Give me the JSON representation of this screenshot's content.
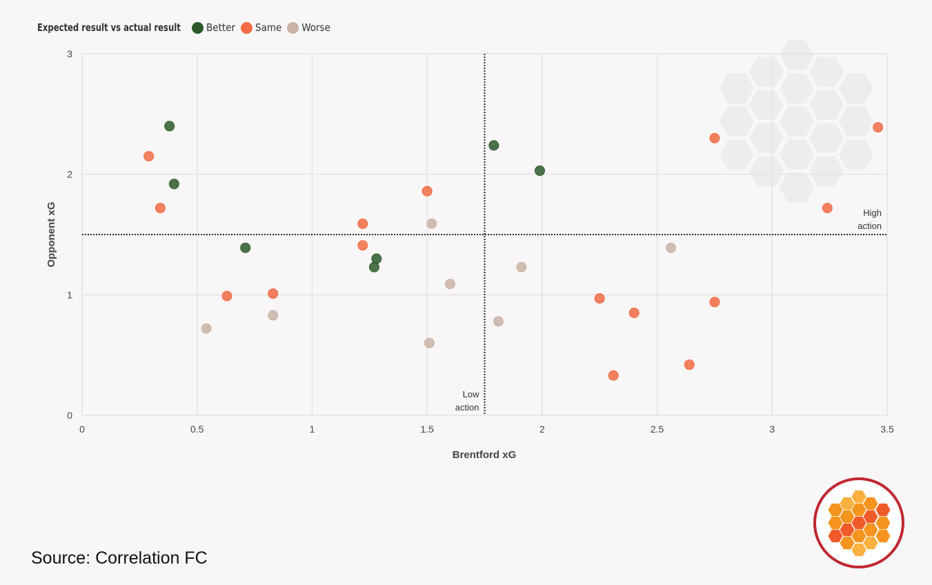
{
  "legend": {
    "title": "Expected result vs actual result",
    "items": [
      {
        "label": "Better",
        "color": "#2d5a2b"
      },
      {
        "label": "Same",
        "color": "#f26b43"
      },
      {
        "label": "Worse",
        "color": "#c9b3a6"
      }
    ]
  },
  "source": "Source: Correlation FC",
  "chart_data": {
    "type": "scatter",
    "xlabel": "Brentford xG",
    "ylabel": "Opponent xG",
    "xlim": [
      0,
      3.5
    ],
    "ylim": [
      0,
      3
    ],
    "xticks": [
      "0",
      "0.5",
      "1",
      "1.5",
      "2",
      "2.5",
      "3",
      "3.5"
    ],
    "yticks": [
      "0",
      "1",
      "2",
      "3"
    ],
    "grid": true,
    "legend_position": "top-left",
    "reference_lines": {
      "x": 1.75,
      "y": 1.5
    },
    "annotations": [
      {
        "text": [
          "Low",
          "action"
        ],
        "x": 1.75,
        "y": 0
      },
      {
        "text": [
          "High",
          "action"
        ],
        "x": 3.5,
        "y": 1.5
      }
    ],
    "series": [
      {
        "name": "Better",
        "color": "#2d5a2b",
        "points": [
          [
            0.38,
            2.4
          ],
          [
            0.4,
            1.92
          ],
          [
            0.71,
            1.39
          ],
          [
            1.28,
            1.3
          ],
          [
            1.27,
            1.23
          ],
          [
            1.79,
            2.24
          ],
          [
            1.99,
            2.03
          ]
        ]
      },
      {
        "name": "Same",
        "color": "#f26b43",
        "points": [
          [
            0.29,
            2.15
          ],
          [
            0.34,
            1.72
          ],
          [
            0.63,
            0.99
          ],
          [
            0.83,
            1.01
          ],
          [
            1.22,
            1.59
          ],
          [
            1.22,
            1.41
          ],
          [
            1.5,
            1.86
          ],
          [
            2.25,
            0.97
          ],
          [
            2.31,
            0.33
          ],
          [
            2.4,
            0.85
          ],
          [
            2.64,
            0.42
          ],
          [
            2.75,
            2.3
          ],
          [
            2.75,
            0.94
          ],
          [
            3.24,
            1.72
          ],
          [
            3.46,
            2.39
          ]
        ]
      },
      {
        "name": "Worse",
        "color": "#c9b3a6",
        "points": [
          [
            0.54,
            0.72
          ],
          [
            0.83,
            0.83
          ],
          [
            1.52,
            1.59
          ],
          [
            1.6,
            1.09
          ],
          [
            1.51,
            0.6
          ],
          [
            1.81,
            0.78
          ],
          [
            1.91,
            1.23
          ],
          [
            2.56,
            1.39
          ]
        ]
      }
    ]
  }
}
